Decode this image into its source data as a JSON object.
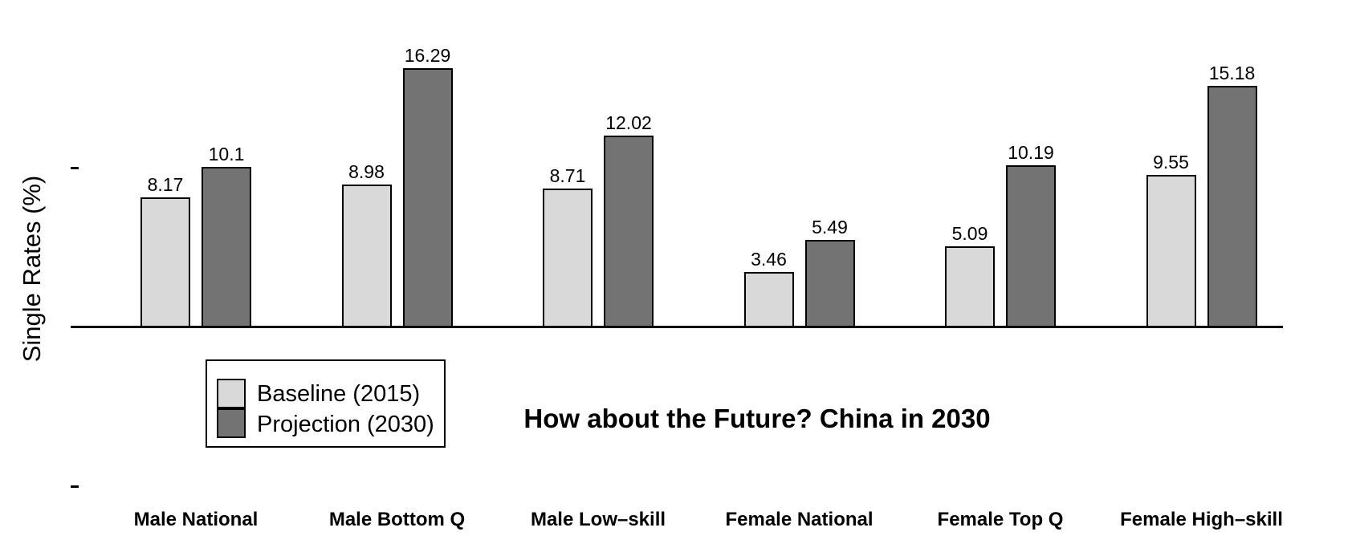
{
  "chart_data": {
    "type": "bar",
    "title": "How about the Future? China in 2030",
    "ylabel": "Single Rates (%)",
    "xlabel": "",
    "categories": [
      "Male National",
      "Male Bottom Q",
      "Male Low–skill",
      "Female National",
      "Female Top Q",
      "Female High–skill"
    ],
    "series": [
      {
        "name": "Baseline (2015)",
        "color": "#d9d9d9",
        "values": [
          8.17,
          8.98,
          8.71,
          3.46,
          5.09,
          9.55
        ]
      },
      {
        "name": "Projection (2030)",
        "color": "#737373",
        "values": [
          10.1,
          16.29,
          12.02,
          5.49,
          10.19,
          15.18
        ]
      }
    ],
    "bar_edge_color": "#000000",
    "value_labels": [
      [
        "8.17",
        "8.98",
        "8.71",
        "3.46",
        "5.09",
        "9.55"
      ],
      [
        "10.1",
        "16.29",
        "12.02",
        "5.49",
        "10.19",
        "15.18"
      ]
    ],
    "y_axis": {
      "ticks": [
        10,
        -10
      ],
      "tick_labels": [
        "",
        ""
      ],
      "baseline_value": 0,
      "ylim": [
        -10.5,
        18
      ]
    },
    "legend": {
      "position": "below-axis-left",
      "entries": [
        "Baseline (2015)",
        "Projection (2030)"
      ]
    },
    "grid": false,
    "background_color": "#ffffff",
    "text_color": "#000000"
  }
}
